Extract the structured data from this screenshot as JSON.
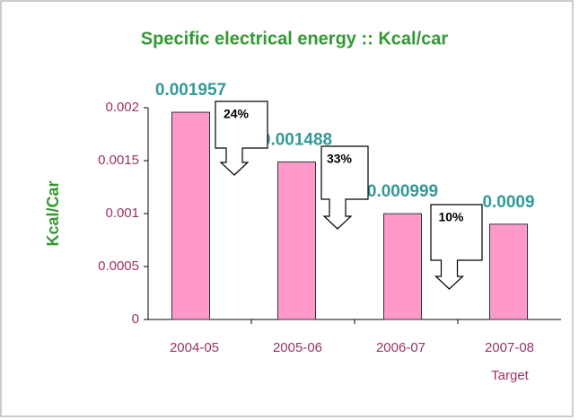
{
  "chart_data": {
    "type": "bar",
    "title": "Specific electrical energy :: Kcal/car",
    "y_label": "Kcal/Car",
    "categories": [
      "2004-05",
      "2005-06",
      "2006-07",
      "2007-08"
    ],
    "category_note": "Target",
    "values": [
      0.001957,
      0.001488,
      0.000999,
      0.0009
    ],
    "value_labels": [
      "0.001957",
      "0.001488",
      "0.000999",
      "0.0009"
    ],
    "color": "#ff99cc",
    "ylim": [
      0,
      0.002
    ],
    "yticks": [
      0,
      0.0005,
      0.001,
      0.0015,
      0.002
    ],
    "grid": false,
    "annotations": [
      "24%",
      "33%",
      "10%"
    ]
  }
}
